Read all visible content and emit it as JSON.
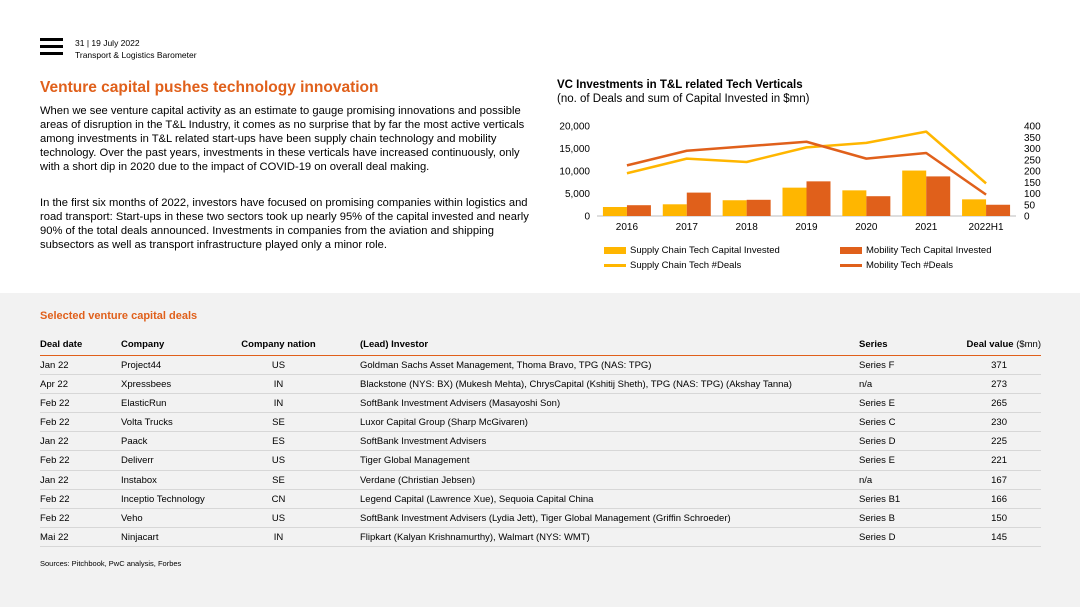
{
  "header": {
    "page_date": "31  |  19 July 2022",
    "publication": "Transport & Logistics Barometer"
  },
  "article": {
    "title": "Venture capital pushes technology innovation",
    "paragraph1": "When we see venture capital activity as an estimate to gauge promising innovations and possible areas of disruption in the T&L Industry, it comes as no surprise that by far the most active verticals among investments in T&L related start-ups have been supply chain technology and mobility technology. Over the past years, investments in these verticals have increased continuously, only with a short dip in 2020 due to the impact of COVID-19 on overall deal making.",
    "paragraph2": "In the first six months of 2022, investors have focused on promising companies within logistics and road transport: Start-ups in these two sectors took up nearly 95% of the capital invested and nearly 90% of the total deals announced. Investments in companies from the aviation and shipping subsectors as well as transport infrastructure played only a minor role."
  },
  "chart_data": {
    "type": "bar",
    "title": "VC Investments in T&L related Tech Verticals",
    "subtitle": "(no. of Deals and sum of Capital Invested in $mn)",
    "categories": [
      "2016",
      "2017",
      "2018",
      "2019",
      "2020",
      "2021",
      "2022H1"
    ],
    "series": [
      {
        "name": "Supply Chain Tech Capital Invested",
        "type": "bar",
        "axis": "left",
        "color": "#ffb600",
        "values": [
          2000,
          2600,
          3500,
          6300,
          5700,
          10100,
          3700
        ]
      },
      {
        "name": "Mobility Tech Capital Invested",
        "type": "bar",
        "axis": "left",
        "color": "#e0601b",
        "values": [
          2400,
          5200,
          3600,
          7700,
          4400,
          8800,
          2500
        ]
      },
      {
        "name": "Supply Chain Tech #Deals",
        "type": "line",
        "axis": "right",
        "color": "#ffb600",
        "values": [
          190,
          255,
          240,
          305,
          325,
          375,
          145
        ]
      },
      {
        "name": "Mobility Tech #Deals",
        "type": "line",
        "axis": "right",
        "color": "#e0601b",
        "values": [
          225,
          290,
          310,
          330,
          255,
          280,
          95
        ]
      }
    ],
    "y_left": {
      "ticks": [
        "20,000",
        "15,000",
        "10,000",
        "5,000",
        "0"
      ],
      "range": [
        0,
        20000
      ]
    },
    "y_right": {
      "ticks": [
        "400",
        "350",
        "300",
        "250",
        "200",
        "150",
        "100",
        "50",
        "0"
      ],
      "range": [
        0,
        400
      ]
    },
    "grid": false,
    "legend_position": "bottom"
  },
  "deals": {
    "title": "Selected venture capital deals",
    "columns": {
      "date": "Deal date",
      "company": "Company",
      "nation": "Company nation",
      "investor": "(Lead) Investor",
      "series": "Series",
      "value": "Deal value",
      "value_unit": "($mn)"
    },
    "rows": [
      {
        "date": "Jan 22",
        "company": "Project44",
        "nation": "US",
        "investor": "Goldman Sachs Asset Management, Thoma Bravo, TPG (NAS: TPG)",
        "series": "Series F",
        "value": "371"
      },
      {
        "date": "Apr 22",
        "company": "Xpressbees",
        "nation": "IN",
        "investor": "Blackstone (NYS: BX) (Mukesh Mehta), ChrysCapital (Kshitij Sheth), TPG (NAS: TPG) (Akshay Tanna)",
        "series": " n/a",
        "value": "273"
      },
      {
        "date": "Feb 22",
        "company": "ElasticRun",
        "nation": "IN",
        "investor": "SoftBank Investment Advisers (Masayoshi Son)",
        "series": "Series E",
        "value": "265"
      },
      {
        "date": "Feb 22",
        "company": "Volta Trucks",
        "nation": "SE",
        "investor": "Luxor Capital Group (Sharp McGivaren)",
        "series": "Series C",
        "value": "230"
      },
      {
        "date": "Jan 22",
        "company": "Paack",
        "nation": "ES",
        "investor": "SoftBank Investment Advisers",
        "series": "Series D",
        "value": "225"
      },
      {
        "date": "Feb 22",
        "company": "Deliverr",
        "nation": "US",
        "investor": "Tiger Global Management",
        "series": "Series E",
        "value": "221"
      },
      {
        "date": "Jan 22",
        "company": "Instabox",
        "nation": "SE",
        "investor": "Verdane (Christian Jebsen)",
        "series": " n/a",
        "value": "167"
      },
      {
        "date": "Feb 22",
        "company": "Inceptio Technology",
        "nation": "CN",
        "investor": "Legend Capital (Lawrence Xue), Sequoia Capital China",
        "series": "Series B1",
        "value": "166"
      },
      {
        "date": "Feb 22",
        "company": "Veho",
        "nation": "US",
        "investor": "SoftBank Investment Advisers (Lydia Jett), Tiger Global Management (Griffin Schroeder)",
        "series": "Series B",
        "value": "150"
      },
      {
        "date": "Mai 22",
        "company": "Ninjacart",
        "nation": "IN",
        "investor": "Flipkart (Kalyan Krishnamurthy), Walmart (NYS: WMT)",
        "series": "Series D",
        "value": "145"
      }
    ]
  },
  "sources": "Sources: Pitchbook, PwC analysis, Forbes"
}
